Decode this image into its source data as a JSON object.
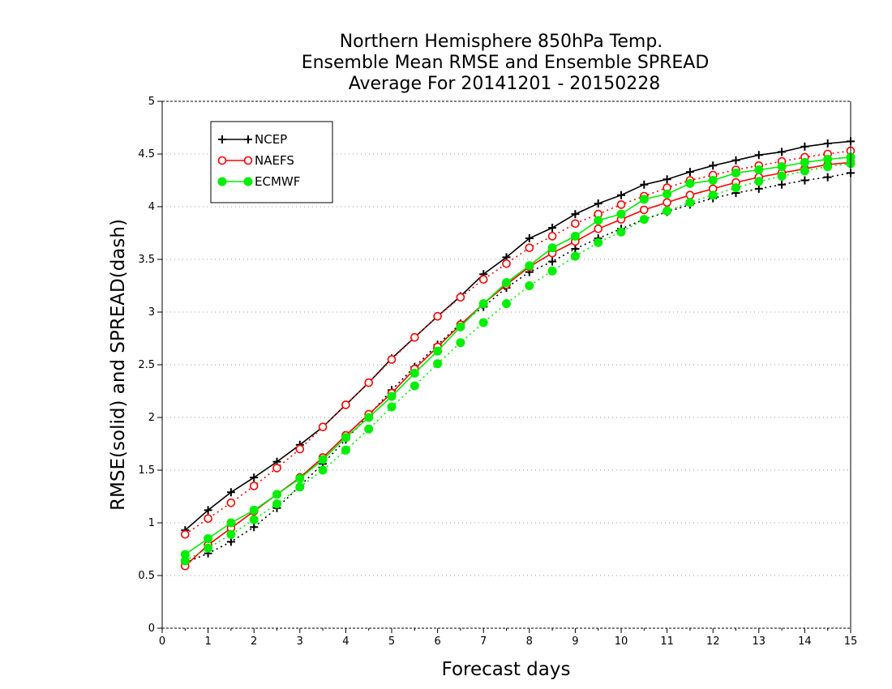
{
  "chart_data": {
    "type": "line",
    "title": [
      "Northern Hemisphere 850hPa Temp.",
      "Ensemble Mean RMSE and Ensemble SPREAD",
      "Average For 20141201 - 20150228"
    ],
    "xlabel": "Forecast days",
    "ylabel": "RMSE(solid) and SPREAD(dash)",
    "xlim": [
      0,
      15
    ],
    "ylim": [
      0,
      5
    ],
    "xticks": [
      0,
      1,
      2,
      3,
      4,
      5,
      6,
      7,
      8,
      9,
      10,
      11,
      12,
      13,
      14,
      15
    ],
    "yticks": [
      0,
      0.5,
      1,
      1.5,
      2,
      2.5,
      3,
      3.5,
      4,
      4.5,
      5
    ],
    "ytick_labels": [
      "0",
      "0.5",
      "1",
      "1.5",
      "2",
      "2.5",
      "3",
      "3.5",
      "4",
      "4.5",
      "5"
    ],
    "grid": "horizontal dotted",
    "legend_position": "top-left",
    "x": [
      0.5,
      1,
      1.5,
      2,
      2.5,
      3,
      3.5,
      4,
      4.5,
      5,
      5.5,
      6,
      6.5,
      7,
      7.5,
      8,
      8.5,
      9,
      9.5,
      10,
      10.5,
      11,
      11.5,
      12,
      12.5,
      13,
      13.5,
      14,
      14.5,
      15
    ],
    "series": [
      {
        "name": "NCEP",
        "color": "#000000",
        "marker": "plus",
        "rmse": [
          0.93,
          1.12,
          1.29,
          1.43,
          1.58,
          1.74,
          1.91,
          2.12,
          2.33,
          2.56,
          2.76,
          2.96,
          3.15,
          3.36,
          3.52,
          3.7,
          3.8,
          3.93,
          4.03,
          4.11,
          4.21,
          4.26,
          4.33,
          4.39,
          4.44,
          4.49,
          4.52,
          4.57,
          4.6,
          4.62
        ],
        "spread": [
          0.62,
          0.71,
          0.82,
          0.96,
          1.14,
          1.35,
          1.56,
          1.79,
          2.02,
          2.26,
          2.48,
          2.69,
          2.89,
          3.05,
          3.23,
          3.38,
          3.48,
          3.6,
          3.7,
          3.79,
          3.88,
          3.95,
          4.02,
          4.08,
          4.13,
          4.17,
          4.21,
          4.25,
          4.28,
          4.32
        ]
      },
      {
        "name": "NAEFS",
        "color": "#ff0000",
        "marker": "open-circle",
        "rmse": [
          0.59,
          0.79,
          0.95,
          1.11,
          1.27,
          1.43,
          1.62,
          1.83,
          2.03,
          2.23,
          2.46,
          2.67,
          2.88,
          3.08,
          3.26,
          3.43,
          3.56,
          3.67,
          3.79,
          3.88,
          3.97,
          4.04,
          4.11,
          4.17,
          4.23,
          4.28,
          4.32,
          4.36,
          4.4,
          4.42
        ],
        "spread": [
          0.89,
          1.04,
          1.19,
          1.35,
          1.52,
          1.7,
          1.91,
          2.12,
          2.33,
          2.55,
          2.76,
          2.96,
          3.14,
          3.31,
          3.46,
          3.61,
          3.72,
          3.84,
          3.93,
          4.02,
          4.1,
          4.18,
          4.25,
          4.3,
          4.35,
          4.39,
          4.43,
          4.47,
          4.5,
          4.53
        ]
      },
      {
        "name": "ECMWF",
        "color": "#00ee00",
        "marker": "filled-circle",
        "rmse": [
          0.7,
          0.85,
          1.0,
          1.12,
          1.27,
          1.42,
          1.6,
          1.81,
          2.0,
          2.2,
          2.42,
          2.63,
          2.86,
          3.08,
          3.28,
          3.44,
          3.61,
          3.72,
          3.87,
          3.93,
          4.07,
          4.12,
          4.22,
          4.25,
          4.32,
          4.35,
          4.38,
          4.42,
          4.45,
          4.47
        ],
        "spread": [
          0.64,
          0.76,
          0.89,
          1.03,
          1.18,
          1.34,
          1.5,
          1.69,
          1.89,
          2.1,
          2.3,
          2.51,
          2.71,
          2.9,
          3.08,
          3.25,
          3.39,
          3.53,
          3.66,
          3.76,
          3.88,
          3.96,
          4.04,
          4.11,
          4.18,
          4.24,
          4.29,
          4.34,
          4.38,
          4.41
        ]
      }
    ]
  }
}
